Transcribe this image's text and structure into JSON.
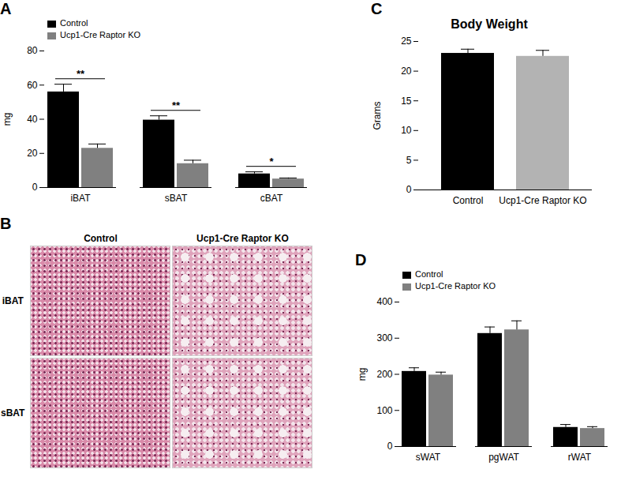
{
  "chart_data": [
    {
      "label": "A",
      "type": "bar",
      "y_label": "mg",
      "categories": [
        "iBAT",
        "sBAT",
        "cBAT"
      ],
      "series": [
        {
          "name": "Control",
          "color": "#000000",
          "values": [
            56,
            39.5,
            8
          ],
          "errors": [
            4.5,
            2.5,
            1.2
          ]
        },
        {
          "name": "Ucp1-Cre Raptor KO",
          "color": "#808080",
          "values": [
            23,
            14,
            5
          ],
          "errors": [
            2.5,
            2,
            0.6
          ]
        }
      ],
      "ylim": [
        0,
        80
      ],
      "yticks": [
        0,
        20,
        40,
        60,
        80
      ],
      "annotations": [
        {
          "category": "iBAT",
          "text": "**"
        },
        {
          "category": "sBAT",
          "text": "**"
        },
        {
          "category": "cBAT",
          "text": "*"
        }
      ],
      "legend": "top-left"
    },
    {
      "label": "B",
      "type": "image",
      "columns": [
        "Control",
        "Ucp1-Cre Raptor KO"
      ],
      "rows": [
        "iBAT",
        "sBAT"
      ]
    },
    {
      "label": "C",
      "type": "bar",
      "title": "Body Weight",
      "y_label": "Grams",
      "categories": [
        "Control",
        "Ucp1-Cre Raptor KO"
      ],
      "values": [
        23,
        22.5
      ],
      "errors": [
        0.7,
        1.0
      ],
      "colors": [
        "#000000",
        "#b3b3b3"
      ],
      "ylim": [
        0,
        25
      ],
      "yticks": [
        0,
        5,
        10,
        15,
        20,
        25
      ]
    },
    {
      "label": "D",
      "type": "bar",
      "y_label": "mg",
      "categories": [
        "sWAT",
        "pgWAT",
        "rWAT"
      ],
      "series": [
        {
          "name": "Control",
          "color": "#000000",
          "values": [
            208,
            313,
            53
          ],
          "errors": [
            10,
            18,
            8
          ]
        },
        {
          "name": "Ucp1-Cre Raptor KO",
          "color": "#808080",
          "values": [
            198,
            323,
            50
          ],
          "errors": [
            8,
            25,
            5
          ]
        }
      ],
      "ylim": [
        0,
        400
      ],
      "yticks": [
        0,
        100,
        200,
        300,
        400
      ],
      "legend": "top-left"
    }
  ]
}
